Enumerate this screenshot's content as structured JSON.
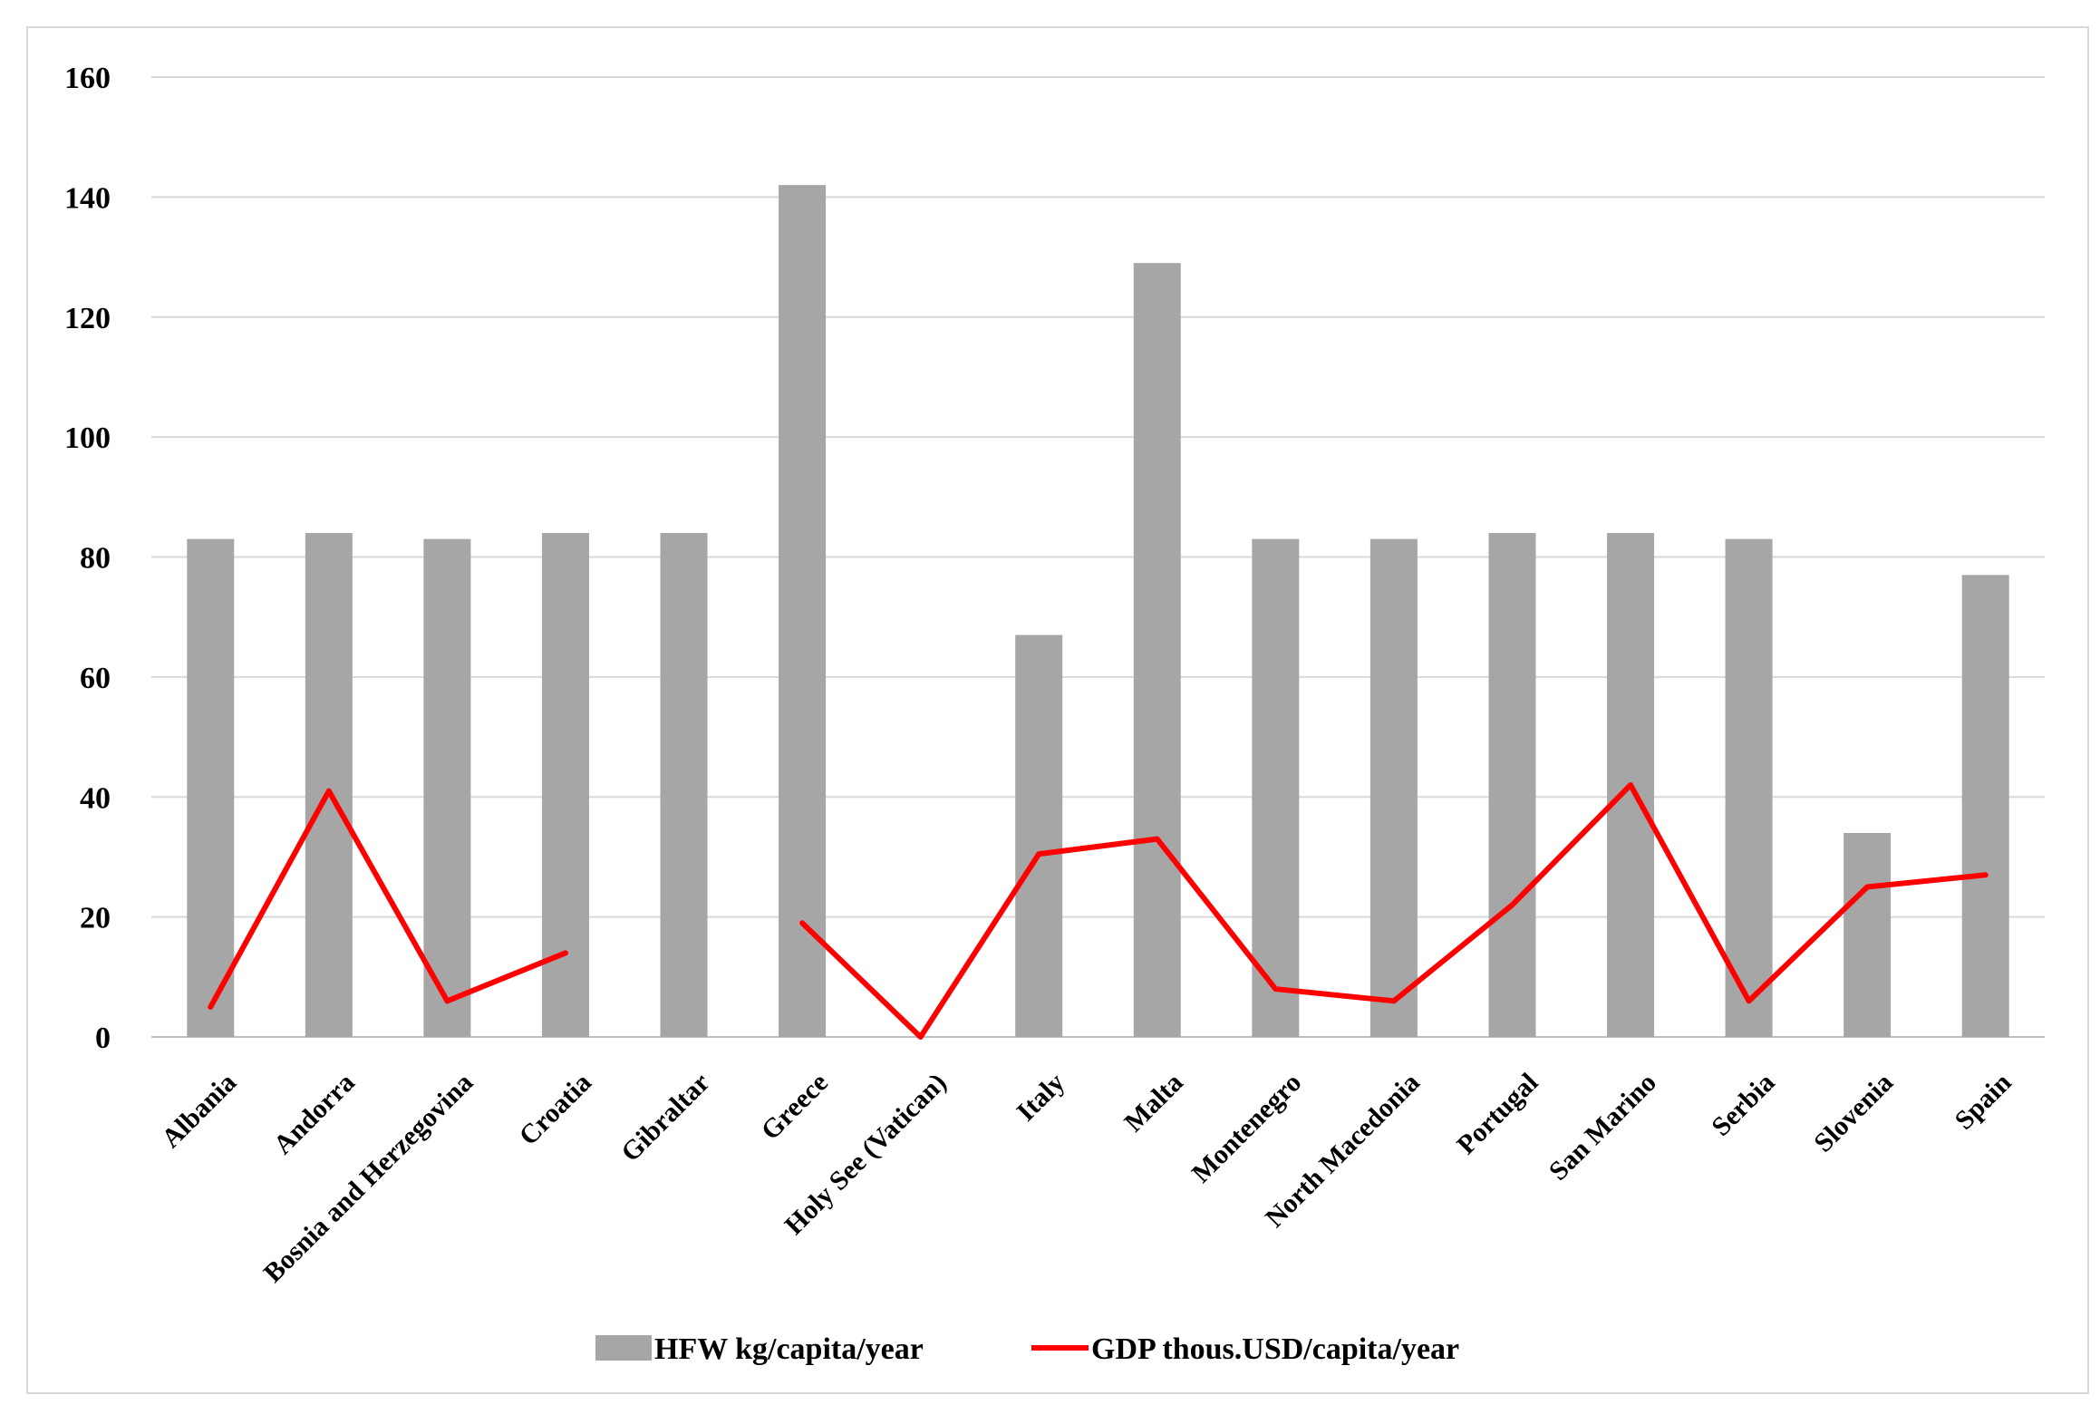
{
  "chart_data": {
    "type": "bar",
    "categories": [
      "Albania",
      "Andorra",
      "Bosnia and Herzegovina",
      "Croatia",
      "Gibraltar",
      "Greece",
      "Holy See (Vatican)",
      "Italy",
      "Malta",
      "Montenegro",
      "North Macedonia",
      "Portugal",
      "San Marino",
      "Serbia",
      "Slovenia",
      "Spain"
    ],
    "series": [
      {
        "name": "HFW kg/capita/year",
        "type": "bar",
        "color": "#a6a6a6",
        "values": [
          83,
          84,
          83,
          84,
          84,
          142,
          null,
          67,
          129,
          83,
          83,
          84,
          84,
          83,
          34,
          77
        ]
      },
      {
        "name": "GDP thous.USD/capita/year",
        "type": "line",
        "color": "#ff0000",
        "values": [
          5,
          41,
          6,
          14,
          null,
          19,
          0,
          30.5,
          33,
          8,
          6,
          22,
          42,
          6,
          25,
          27
        ]
      }
    ],
    "ylim": [
      0,
      160
    ],
    "yticks": [
      0,
      20,
      40,
      60,
      80,
      100,
      120,
      140,
      160
    ],
    "ytick_labels": [
      "0",
      "20",
      "40",
      "60",
      "80",
      "100",
      "120",
      "140",
      "160"
    ],
    "title": "",
    "xlabel": "",
    "ylabel": "",
    "grid": true,
    "legend": "bottom"
  }
}
